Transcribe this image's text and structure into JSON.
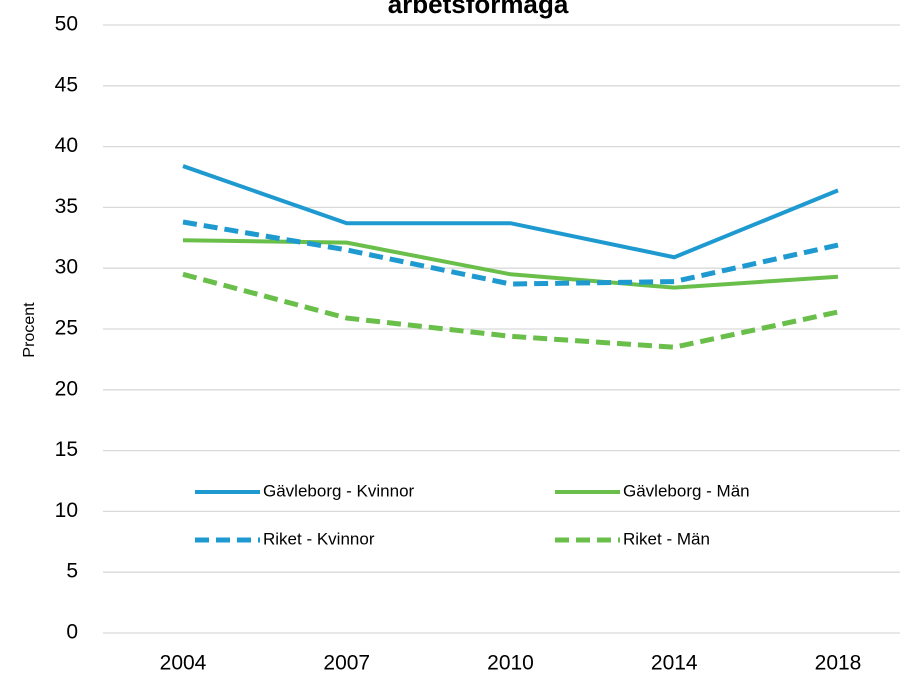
{
  "chart_data": {
    "type": "line",
    "title": "arbetsförmåga",
    "y_label": "Procent",
    "categories": [
      "2004",
      "2007",
      "2010",
      "2014",
      "2018"
    ],
    "series": [
      {
        "name": "Gävleborg - Kvinnor",
        "color": "#1e9ad0",
        "dash": false,
        "values": [
          38.4,
          33.7,
          33.7,
          30.9,
          36.4
        ]
      },
      {
        "name": "Gävleborg - Män",
        "color": "#6abf4b",
        "dash": false,
        "values": [
          32.3,
          32.1,
          29.5,
          28.4,
          29.3
        ]
      },
      {
        "name": "Riket - Kvinnor",
        "color": "#1e9ad0",
        "dash": true,
        "values": [
          33.8,
          31.5,
          28.7,
          28.9,
          31.9
        ]
      },
      {
        "name": "Riket - Män",
        "color": "#6abf4b",
        "dash": true,
        "values": [
          29.5,
          25.9,
          24.4,
          23.5,
          26.4
        ]
      }
    ],
    "ylim": [
      0,
      50
    ],
    "yticks": [
      0,
      5,
      10,
      15,
      20,
      25,
      30,
      35,
      40,
      45,
      50
    ],
    "grid": true
  }
}
